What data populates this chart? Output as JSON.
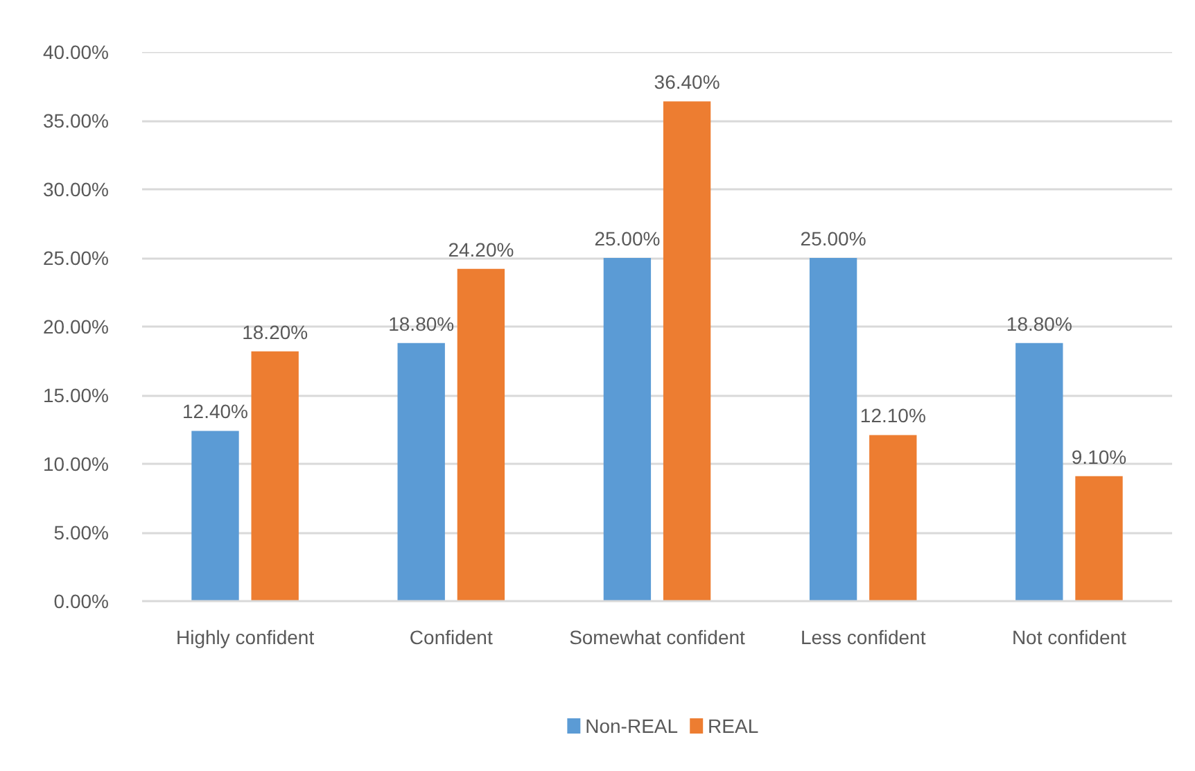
{
  "chart_data": {
    "type": "bar",
    "categories": [
      "Highly confident",
      "Confident",
      "Somewhat confident",
      "Less confident",
      "Not confident"
    ],
    "series": [
      {
        "name": "Non-REAL",
        "color": "#5b9bd5",
        "values": [
          12.4,
          18.8,
          25.0,
          25.0,
          18.8
        ],
        "value_labels": [
          "12.40%",
          "18.80%",
          "25.00%",
          "25.00%",
          "18.80%"
        ]
      },
      {
        "name": "REAL",
        "color": "#ed7d31",
        "values": [
          18.2,
          24.2,
          36.4,
          12.1,
          9.1
        ],
        "value_labels": [
          "18.20%",
          "24.20%",
          "36.40%",
          "12.10%",
          "9.10%"
        ]
      }
    ],
    "ylim": [
      0,
      40
    ],
    "yticks": [
      {
        "value": 0,
        "label": "0.00%"
      },
      {
        "value": 5,
        "label": "5.00%"
      },
      {
        "value": 10,
        "label": "10.00%"
      },
      {
        "value": 15,
        "label": "15.00%"
      },
      {
        "value": 20,
        "label": "20.00%"
      },
      {
        "value": 25,
        "label": "25.00%"
      },
      {
        "value": 30,
        "label": "30.00%"
      },
      {
        "value": 35,
        "label": "35.00%"
      },
      {
        "value": 40,
        "label": "40.00%"
      }
    ],
    "grid": "y",
    "legend": "bottom"
  }
}
